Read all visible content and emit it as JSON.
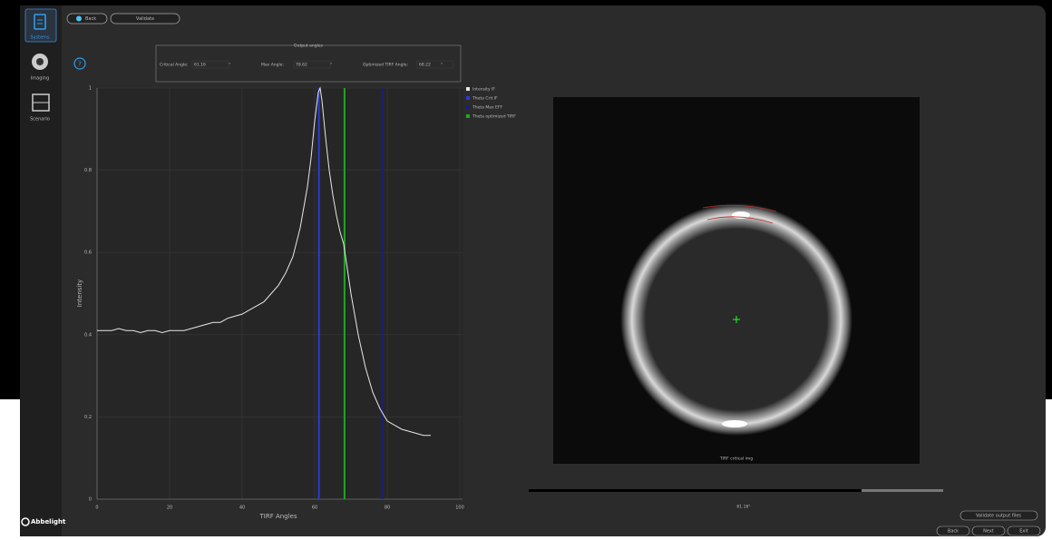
{
  "sidebar": [
    {
      "label": "Systems"
    },
    {
      "label": "Imaging"
    },
    {
      "label": "Scenario"
    }
  ],
  "logo": "Abbelight",
  "top_buttons": [
    "Back",
    "Validate"
  ],
  "help": "?",
  "output_angles": {
    "title": "Output angles",
    "fields": [
      {
        "label": "Critical Angle:",
        "value": "61.16",
        "unit": "°"
      },
      {
        "label": "Max Angle:",
        "value": "78.62",
        "unit": "°"
      },
      {
        "label": "Optimized TIRF Angle:",
        "value": "68.22",
        "unit": "°"
      }
    ]
  },
  "chart_data": {
    "type": "line",
    "xlabel": "TIRF Angles",
    "ylabel": "Intensity",
    "xlim": [
      0,
      100
    ],
    "ylim": [
      0,
      1
    ],
    "xticks": [
      0,
      20,
      40,
      60,
      80,
      100
    ],
    "yticks": [
      0,
      0.2,
      0.4,
      0.6,
      0.8,
      1
    ],
    "grid": true,
    "series": [
      {
        "name": "Intensity IF",
        "color": "#e8e8e8",
        "x": [
          0,
          2,
          4,
          6,
          8,
          10,
          12,
          14,
          16,
          18,
          20,
          22,
          24,
          26,
          28,
          30,
          32,
          34,
          36,
          38,
          40,
          42,
          44,
          46,
          48,
          50,
          52,
          54,
          56,
          58,
          59,
          60,
          61,
          61.5,
          62,
          63,
          64,
          65,
          66,
          67,
          68,
          69,
          70,
          72,
          74,
          76,
          78,
          80,
          82,
          84,
          86,
          88,
          90,
          92
        ],
        "values": [
          0.41,
          0.41,
          0.41,
          0.415,
          0.41,
          0.41,
          0.405,
          0.41,
          0.41,
          0.405,
          0.41,
          0.41,
          0.41,
          0.415,
          0.42,
          0.425,
          0.43,
          0.43,
          0.44,
          0.445,
          0.45,
          0.46,
          0.47,
          0.48,
          0.5,
          0.52,
          0.55,
          0.59,
          0.66,
          0.76,
          0.83,
          0.92,
          0.99,
          1.0,
          0.97,
          0.88,
          0.8,
          0.74,
          0.69,
          0.65,
          0.62,
          0.56,
          0.5,
          0.4,
          0.32,
          0.26,
          0.22,
          0.19,
          0.18,
          0.17,
          0.165,
          0.16,
          0.155,
          0.155
        ]
      }
    ],
    "markers": [
      {
        "name": "Theta Crit IF",
        "color": "#2a3cd6",
        "x": 61.16
      },
      {
        "name": "Theta Max EFF",
        "color": "#1a1f7a",
        "x": 78.62
      },
      {
        "name": "Theta optimized TIRF",
        "color": "#1fa81f",
        "x": 68.22
      }
    ]
  },
  "image": {
    "caption": "TIRF critical img",
    "slider_label": "61.16°"
  },
  "footer_buttons": [
    "Validate output files",
    "Back",
    "Next",
    "Exit"
  ]
}
